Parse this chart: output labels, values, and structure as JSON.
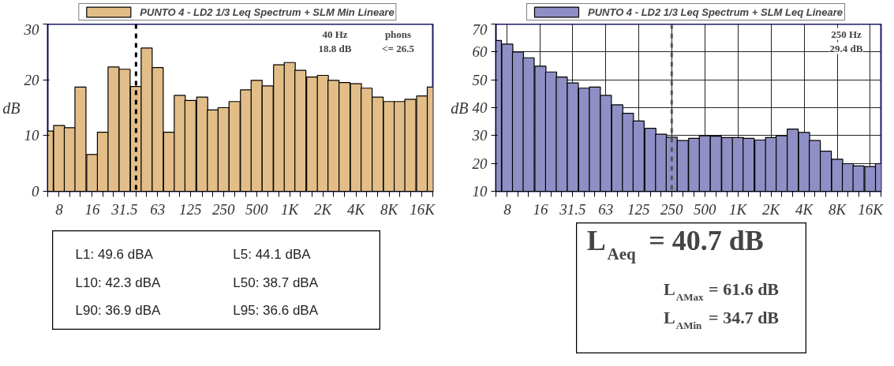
{
  "chart_data": [
    {
      "type": "bar",
      "log": "x",
      "legend": "top",
      "grid": false,
      "ylabel": "dB",
      "x": [
        6.3,
        8,
        10,
        12.5,
        16,
        20,
        25,
        31.5,
        40,
        50,
        63,
        80,
        100,
        125,
        160,
        200,
        250,
        315,
        400,
        500,
        630,
        800,
        1000,
        1250,
        1600,
        2000,
        2500,
        3150,
        4000,
        5000,
        6300,
        8000,
        10000,
        12500,
        16000,
        20000
      ],
      "series": [
        {
          "name": "PUNTO 4 - LD2 1/3 Leq Spectrum + SLM Min Lineare",
          "color": "#e2bd87",
          "values": [
            10.8,
            11.8,
            11.4,
            18.7,
            6.6,
            10.6,
            22.3,
            21.9,
            18.8,
            25.7,
            22.2,
            10.6,
            17.2,
            16.3,
            16.9,
            14.6,
            15.0,
            16.1,
            18.2,
            19.9,
            18.9,
            22.7,
            23.1,
            21.7,
            20.5,
            20.8,
            19.9,
            19.5,
            19.3,
            18.5,
            16.9,
            16.1,
            16.1,
            16.5,
            17.1,
            18.7
          ]
        }
      ],
      "xlim": [
        6.3,
        20000
      ],
      "xticks": [
        {
          "value": 6.3,
          "label": null
        },
        8,
        {
          "value": 10,
          "label": null
        },
        {
          "value": 12.5,
          "label": null
        },
        16,
        {
          "value": 20,
          "label": null
        },
        {
          "value": 25,
          "label": null
        },
        31.5,
        {
          "value": 40,
          "label": null
        },
        {
          "value": 50,
          "label": null
        },
        63,
        {
          "value": 80,
          "label": null
        },
        {
          "value": 100,
          "label": null
        },
        125,
        {
          "value": 160,
          "label": null
        },
        {
          "value": 200,
          "label": null
        },
        250,
        {
          "value": 315,
          "label": null
        },
        {
          "value": 400,
          "label": null
        },
        500,
        {
          "value": 630,
          "label": null
        },
        {
          "value": 800,
          "label": null
        },
        {
          "value": 1000,
          "label": "1K"
        },
        {
          "value": 1250,
          "label": null
        },
        {
          "value": 1600,
          "label": null
        },
        {
          "value": 2000,
          "label": "2K"
        },
        {
          "value": 2500,
          "label": null
        },
        {
          "value": 3150,
          "label": null
        },
        {
          "value": 4000,
          "label": "4K"
        },
        {
          "value": 5000,
          "label": null
        },
        {
          "value": 6300,
          "label": null
        },
        {
          "value": 8000,
          "label": "8K"
        },
        {
          "value": 10000,
          "label": null
        },
        {
          "value": 12500,
          "label": null
        },
        {
          "value": 16000,
          "label": "16K"
        },
        {
          "value": 20000,
          "label": null
        }
      ],
      "ylim": [
        0,
        30
      ],
      "yticks": [
        0,
        10,
        20,
        30
      ],
      "ref_lines": [
        {
          "axis": "x",
          "value": 40,
          "line_style": "dashed",
          "color": "#000000"
        }
      ],
      "annotations": [
        "40 Hz",
        "18.8 dB",
        "phons",
        "<= 26.5"
      ]
    },
    {
      "type": "bar",
      "log": "x",
      "legend": "top",
      "grid": true,
      "ylabel": "dB",
      "x": [
        6.3,
        8,
        10,
        12.5,
        16,
        20,
        25,
        31.5,
        40,
        50,
        63,
        80,
        100,
        125,
        160,
        200,
        250,
        315,
        400,
        500,
        630,
        800,
        1000,
        1250,
        1600,
        2000,
        2500,
        3150,
        4000,
        5000,
        6300,
        8000,
        10000,
        12500,
        16000,
        20000
      ],
      "series": [
        {
          "name": "PUNTO 4 - LD2 1/3 Leq Spectrum + SLM Leq Lineare",
          "color": "#8f8fc6",
          "values": [
            64.1,
            62.8,
            60.0,
            57.9,
            54.9,
            52.8,
            51.0,
            48.9,
            47.0,
            47.4,
            44.4,
            41.0,
            38.0,
            35.2,
            32.6,
            30.5,
            29.4,
            28.2,
            29.0,
            29.9,
            29.8,
            29.3,
            29.3,
            29.0,
            28.4,
            29.3,
            29.9,
            32.3,
            31.1,
            28.2,
            24.4,
            21.5,
            19.9,
            19.1,
            18.9,
            19.9
          ]
        }
      ],
      "xlim": [
        6.3,
        20000
      ],
      "xticks": [
        {
          "value": 6.3,
          "label": null
        },
        8,
        {
          "value": 10,
          "label": null
        },
        {
          "value": 12.5,
          "label": null
        },
        16,
        {
          "value": 20,
          "label": null
        },
        {
          "value": 25,
          "label": null
        },
        31.5,
        {
          "value": 40,
          "label": null
        },
        {
          "value": 50,
          "label": null
        },
        63,
        {
          "value": 80,
          "label": null
        },
        {
          "value": 100,
          "label": null
        },
        125,
        {
          "value": 160,
          "label": null
        },
        {
          "value": 200,
          "label": null
        },
        250,
        {
          "value": 315,
          "label": null
        },
        {
          "value": 400,
          "label": null
        },
        500,
        {
          "value": 630,
          "label": null
        },
        {
          "value": 800,
          "label": null
        },
        {
          "value": 1000,
          "label": "1K"
        },
        {
          "value": 1250,
          "label": null
        },
        {
          "value": 1600,
          "label": null
        },
        {
          "value": 2000,
          "label": "2K"
        },
        {
          "value": 2500,
          "label": null
        },
        {
          "value": 3150,
          "label": null
        },
        {
          "value": 4000,
          "label": "4K"
        },
        {
          "value": 5000,
          "label": null
        },
        {
          "value": 6300,
          "label": null
        },
        {
          "value": 8000,
          "label": "8K"
        },
        {
          "value": 10000,
          "label": null
        },
        {
          "value": 12500,
          "label": null
        },
        {
          "value": 16000,
          "label": "16K"
        },
        {
          "value": 20000,
          "label": null
        }
      ],
      "ylim": [
        10,
        70
      ],
      "yticks": [
        10,
        20,
        30,
        40,
        50,
        60,
        70
      ],
      "ref_lines": [
        {
          "axis": "x",
          "value": 250,
          "line_style": "dashed",
          "color": "#555555"
        }
      ],
      "annotations": [
        "250 Hz",
        "29.4 dB"
      ]
    },
    {
      "type": "other",
      "annotations": [
        "L1: 49.6 dBA",
        "L5: 44.1 dBA",
        "L10: 42.3 dBA",
        "L50: 38.7 dBA",
        "L90: 36.9 dBA",
        "L95: 36.6 dBA"
      ]
    },
    {
      "type": "other",
      "annotations": [
        "L$_{Aeq}$ = 40.7 dB",
        "L$_{AMax}$ = 61.6 dB",
        "L$_{AMin}$ = 34.7 dB"
      ]
    }
  ]
}
